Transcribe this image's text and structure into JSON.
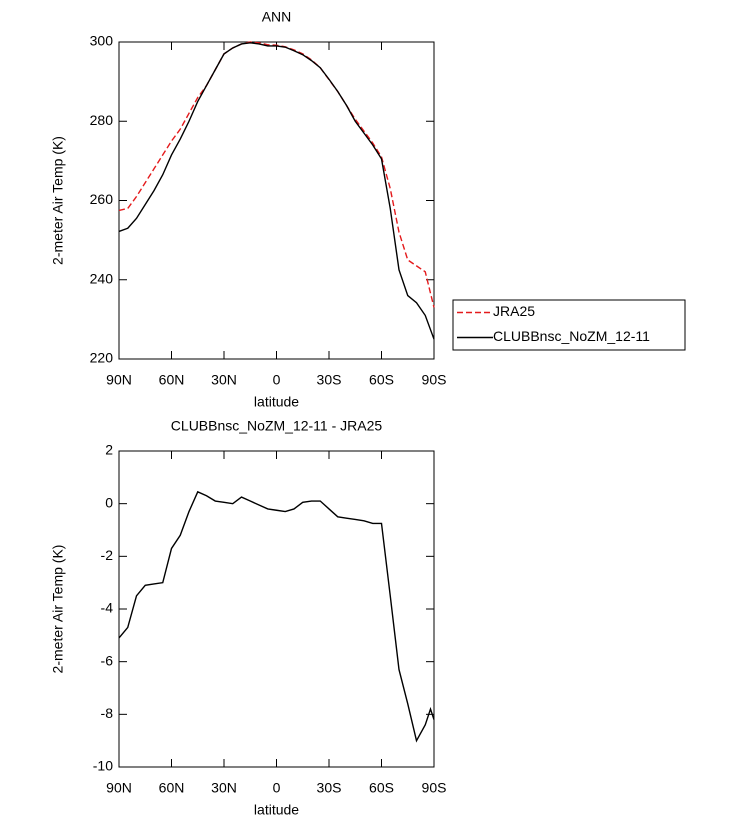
{
  "chart_data": [
    {
      "type": "line",
      "title": "ANN",
      "xlabel": "latitude",
      "ylabel": "2-meter Air Temp (K)",
      "x": [
        90,
        85,
        80,
        75,
        70,
        65,
        60,
        55,
        50,
        45,
        40,
        35,
        30,
        25,
        20,
        15,
        10,
        5,
        0,
        -5,
        -10,
        -15,
        -20,
        -25,
        -30,
        -35,
        -40,
        -45,
        -50,
        -55,
        -60,
        -65,
        -70,
        -75,
        -80,
        -85,
        -90
      ],
      "series": [
        {
          "name": "JRA25",
          "color": "#e41a1c",
          "dash": true,
          "values": [
            257.5,
            258,
            261,
            264.5,
            268,
            271.5,
            275,
            278,
            282,
            286,
            289,
            293,
            297,
            298.5,
            299.5,
            300,
            299.8,
            299.3,
            299.2,
            298.8,
            298,
            297,
            295.5,
            293.5,
            290.5,
            287.5,
            284,
            280.5,
            277.5,
            274.5,
            271,
            263,
            252,
            245,
            243.5,
            242,
            233
          ]
        },
        {
          "name": "CLUBBnsc_NoZM_12-11",
          "color": "#000000",
          "dash": false,
          "values": [
            252.2,
            253,
            255.5,
            259,
            262.5,
            266.5,
            271.5,
            275.5,
            280,
            285,
            289,
            293,
            297,
            298.5,
            299.5,
            299.8,
            299.5,
            299,
            299,
            298.7,
            297.8,
            296.8,
            295.3,
            293.5,
            290.6,
            287.5,
            284,
            280,
            277,
            274,
            270.5,
            258,
            242.5,
            236,
            234.2,
            231,
            225
          ]
        }
      ],
      "xlim": [
        90,
        -90
      ],
      "xticks": [
        {
          "value": 90,
          "label": "90N"
        },
        {
          "value": 60,
          "label": "60N"
        },
        {
          "value": 30,
          "label": "30N"
        },
        0,
        {
          "value": -30,
          "label": "30S"
        },
        {
          "value": -60,
          "label": "60S"
        },
        {
          "value": -90,
          "label": "90S"
        }
      ],
      "ylim": [
        220,
        300
      ],
      "yticks": [
        220,
        240,
        260,
        280,
        300
      ],
      "legend": "outside-right"
    },
    {
      "type": "line",
      "title": "CLUBBnsc_NoZM_12-11 - JRA25",
      "xlabel": "latitude",
      "ylabel": "2-meter Air Temp (K)",
      "x": [
        90,
        85,
        80,
        75,
        70,
        65,
        60,
        55,
        50,
        45,
        40,
        35,
        30,
        25,
        20,
        15,
        10,
        5,
        0,
        -5,
        -10,
        -15,
        -20,
        -25,
        -30,
        -35,
        -40,
        -45,
        -50,
        -55,
        -60,
        -65,
        -70,
        -75,
        -80,
        -85,
        -88,
        -90
      ],
      "values": [
        -5.1,
        -4.7,
        -3.5,
        -3.1,
        -3.05,
        -3.0,
        -1.7,
        -1.2,
        -0.3,
        0.45,
        0.3,
        0.1,
        0.05,
        0.0,
        0.25,
        0.1,
        -0.05,
        -0.2,
        -0.25,
        -0.3,
        -0.2,
        0.05,
        0.1,
        0.1,
        -0.2,
        -0.5,
        -0.55,
        -0.6,
        -0.65,
        -0.75,
        -0.75,
        -3.5,
        -6.3,
        -7.6,
        -9.0,
        -8.4,
        -7.8,
        -8.2
      ],
      "color": "#000000",
      "xlim": [
        90,
        -90
      ],
      "xticks": [
        {
          "value": 90,
          "label": "90N"
        },
        {
          "value": 60,
          "label": "60N"
        },
        {
          "value": 30,
          "label": "30N"
        },
        0,
        {
          "value": -30,
          "label": "30S"
        },
        {
          "value": -60,
          "label": "60S"
        },
        {
          "value": -90,
          "label": "90S"
        }
      ],
      "ylim": [
        -10,
        2
      ],
      "yticks": [
        -10,
        -8,
        -6,
        -4,
        -2,
        0,
        2
      ]
    }
  ]
}
